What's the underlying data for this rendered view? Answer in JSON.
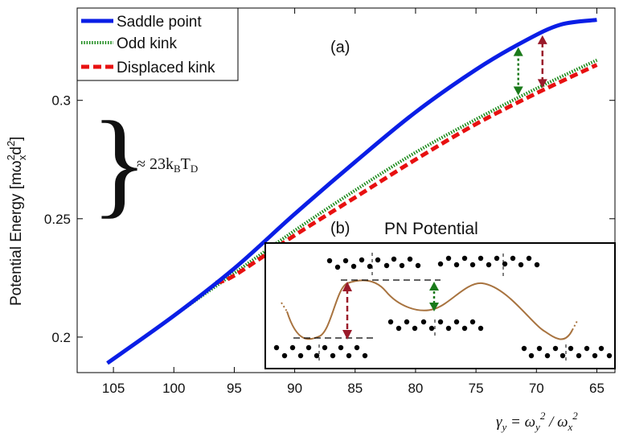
{
  "chart_data": [
    {
      "type": "line",
      "panel": "(a)",
      "title": "",
      "xlabel": "γ_y = ω_y^2 / ω_x^2",
      "ylabel": "Potential Energy [mω_x^2 d^2]",
      "x_reversed": true,
      "xlim": [
        108,
        63.5
      ],
      "ylim": [
        0.185,
        0.339
      ],
      "xticks": [
        105,
        100,
        95,
        90,
        85,
        80,
        75,
        70,
        65
      ],
      "yticks": [
        0.2,
        0.25,
        0.3
      ],
      "legend_position": "top-left",
      "grid": false,
      "series": [
        {
          "name": "Saddle point",
          "color": "#0a1ee6",
          "style": "solid",
          "x": [
            105.5,
            100,
            95,
            90,
            85,
            80,
            75,
            71,
            68,
            65
          ],
          "y": [
            0.189,
            0.209,
            0.229,
            0.252,
            0.274,
            0.295,
            0.313,
            0.325,
            0.332,
            0.334
          ]
        },
        {
          "name": "Odd kink",
          "color": "#1a8a1a",
          "style": "dotted",
          "x": [
            105.5,
            100,
            95,
            90,
            85,
            80,
            75,
            70,
            65
          ],
          "y": [
            0.189,
            0.209,
            0.227,
            0.245,
            0.262,
            0.278,
            0.292,
            0.305,
            0.317
          ]
        },
        {
          "name": "Displaced kink",
          "color": "#e81010",
          "style": "dashed",
          "x": [
            96.5,
            95,
            90,
            85,
            80,
            75,
            70,
            65
          ],
          "y": [
            0.223,
            0.226,
            0.243,
            0.259,
            0.275,
            0.29,
            0.303,
            0.315
          ]
        }
      ],
      "annotations": [
        {
          "text": "(a)"
        },
        {
          "text": "≈ 23k_B T_D",
          "parts": [
            "≈ 23k",
            "B",
            "T",
            "D"
          ]
        },
        {
          "text": "gap arrow",
          "series_pair": [
            "Saddle point",
            "Odd kink"
          ],
          "x": 71.5,
          "color": "#1a7a1a"
        },
        {
          "text": "gap arrow",
          "series_pair": [
            "Saddle point",
            "Displaced kink"
          ],
          "x": 69.5,
          "color": "#9a1a2a"
        }
      ]
    },
    {
      "type": "line",
      "panel": "(b)",
      "title": "PN Potential",
      "description_curve": "periodic potential with maxima and minima",
      "colors": {
        "curve": "#a8733f",
        "arrow_red": "#9a1a2a",
        "arrow_green": "#1a7a1a"
      }
    }
  ],
  "labels": {
    "ylabel_main": "Potential Energy [mω",
    "ylabel_sup1": "2",
    "ylabel_sub": "x",
    "ylabel_d": "d",
    "ylabel_sup2": "2",
    "ylabel_end": "]",
    "xlabel_gamma": "γ",
    "xlabel_y": "y",
    "xlabel_eq": " = ω",
    "xlabel_y2": "y",
    "xlabel_sup": "2",
    "xlabel_div": " / ω",
    "xlabel_x": "x",
    "xlabel_sup2": "2",
    "panel_a": "(a)",
    "panel_b": "(b)",
    "inset_title": "PN Potential",
    "brace_text": "≈ 23k",
    "brace_sub1": "B",
    "brace_t": "T",
    "brace_sub2": "D",
    "brace_char": "}"
  }
}
